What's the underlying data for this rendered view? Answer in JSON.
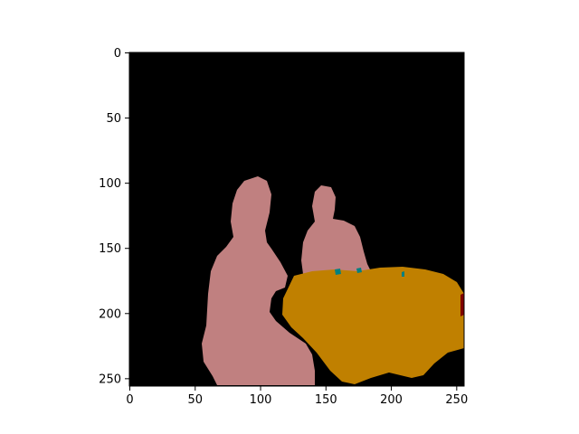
{
  "image": {
    "shape": [
      256,
      256
    ],
    "background_color": "#000000",
    "segments": [
      {
        "name": "person-segment",
        "color": "#c08080"
      },
      {
        "name": "table-segment",
        "color": "#c08000"
      },
      {
        "name": "small-object-segment",
        "color": "#008080"
      },
      {
        "name": "edge-object-segment",
        "color": "#800000"
      }
    ]
  },
  "x_axis": {
    "ticks": [
      {
        "value": 0,
        "label": "0"
      },
      {
        "value": 50,
        "label": "50"
      },
      {
        "value": 100,
        "label": "100"
      },
      {
        "value": 150,
        "label": "150"
      },
      {
        "value": 200,
        "label": "200"
      },
      {
        "value": 250,
        "label": "250"
      }
    ],
    "range": [
      0,
      256
    ]
  },
  "y_axis": {
    "ticks": [
      {
        "value": 0,
        "label": "0"
      },
      {
        "value": 50,
        "label": "50"
      },
      {
        "value": 100,
        "label": "100"
      },
      {
        "value": 150,
        "label": "150"
      },
      {
        "value": 200,
        "label": "200"
      },
      {
        "value": 250,
        "label": "250"
      }
    ],
    "range": [
      0,
      256
    ],
    "inverted": true
  }
}
